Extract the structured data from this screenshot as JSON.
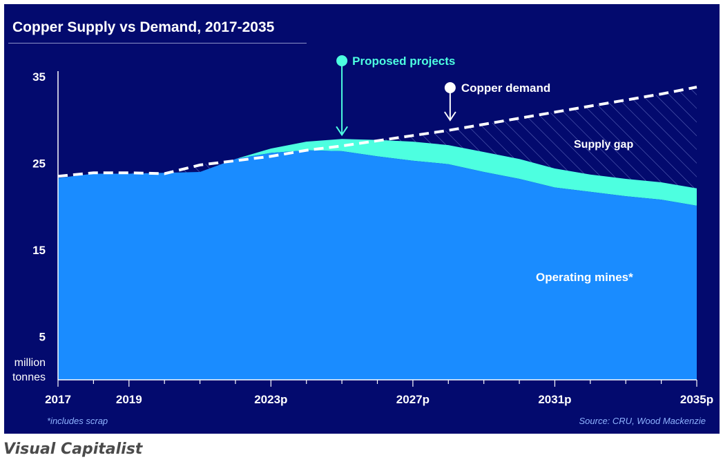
{
  "title": "Copper Supply vs Demand, 2017-2035",
  "footnote": "*includes scrap",
  "source": "Source: CRU, Wood Mackenzie",
  "brand": "Visual Capitalist",
  "colors": {
    "background": "#030a6e",
    "operating": "#1a8cff",
    "proposed": "#4dffe0",
    "demand": "#ffffff",
    "gap_hatch": "#5a64b8"
  },
  "chart_data": {
    "type": "area",
    "title": "Copper Supply vs Demand, 2017-2035",
    "ylabel": "million tonnes",
    "ylabel_lines": [
      "million",
      "tonnes"
    ],
    "ylim": [
      0,
      35
    ],
    "yticks": [
      5,
      15,
      25,
      35
    ],
    "xlim": [
      2017,
      2035
    ],
    "xticks": [
      {
        "value": 2017,
        "label": "2017"
      },
      {
        "value": 2019,
        "label": "2019"
      },
      {
        "value": 2023,
        "label": "2023p"
      },
      {
        "value": 2027,
        "label": "2027p"
      },
      {
        "value": 2031,
        "label": "2031p"
      },
      {
        "value": 2035,
        "label": "2035p"
      }
    ],
    "x": [
      2017,
      2018,
      2019,
      2020,
      2021,
      2022,
      2023,
      2024,
      2025,
      2026,
      2027,
      2028,
      2029,
      2030,
      2031,
      2032,
      2033,
      2034,
      2035
    ],
    "series": [
      {
        "name": "Operating mines*",
        "type": "stacked-area",
        "values": [
          23.3,
          23.8,
          23.8,
          23.9,
          24.0,
          25.5,
          26.2,
          26.5,
          26.4,
          25.8,
          25.3,
          24.9,
          24.0,
          23.2,
          22.2,
          21.7,
          21.2,
          20.8,
          20.1
        ]
      },
      {
        "name": "Proposed projects",
        "type": "stacked-area",
        "values": [
          0,
          0,
          0,
          0,
          0,
          0,
          0.5,
          1.0,
          1.4,
          1.9,
          2.2,
          2.2,
          2.3,
          2.3,
          2.2,
          2.0,
          2.0,
          2.0,
          2.0
        ]
      },
      {
        "name": "Copper demand",
        "type": "dashed-line",
        "values": [
          23.5,
          23.9,
          23.9,
          23.8,
          24.8,
          25.3,
          25.8,
          26.5,
          27.0,
          27.6,
          28.2,
          28.8,
          29.5,
          30.2,
          30.9,
          31.6,
          32.3,
          33.0,
          33.8
        ]
      }
    ],
    "annotations": {
      "proposed": {
        "label": "Proposed projects",
        "x": 2025
      },
      "demand": {
        "label": "Copper demand",
        "x": 2028.05
      },
      "gap": {
        "label": "Supply gap"
      },
      "operating": {
        "label": "Operating mines*"
      }
    }
  }
}
